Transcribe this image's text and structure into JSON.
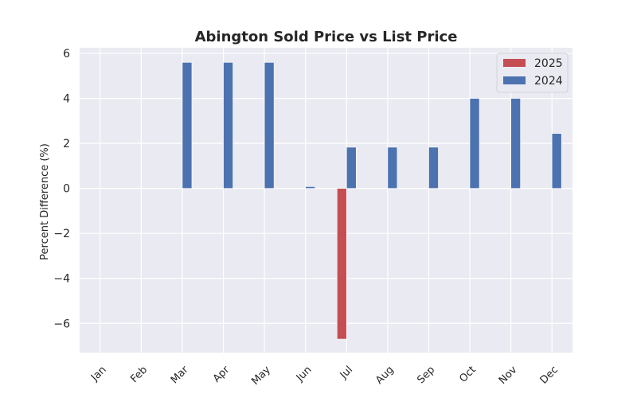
{
  "chart_data": {
    "type": "bar",
    "title": "Abington Sold Price vs List Price",
    "xlabel": "",
    "ylabel": "Percent Difference (%)",
    "categories": [
      "Jan",
      "Feb",
      "Mar",
      "Apr",
      "May",
      "Jun",
      "Jul",
      "Aug",
      "Sep",
      "Oct",
      "Nov",
      "Dec"
    ],
    "series": [
      {
        "name": "2025",
        "color": "#c44e52",
        "values": [
          0,
          0,
          0,
          0,
          0,
          0,
          -6.7,
          null,
          null,
          null,
          null,
          null
        ]
      },
      {
        "name": "2024",
        "color": "#4c72b0",
        "values": [
          0,
          0,
          5.6,
          5.6,
          5.6,
          0.08,
          1.83,
          1.83,
          1.83,
          4.0,
          4.0,
          2.44
        ]
      }
    ],
    "ylim": [
      -7.3,
      6.25
    ],
    "yticks": [
      -6,
      -4,
      -2,
      0,
      2,
      4,
      6
    ],
    "ytick_labels": [
      "−6",
      "−4",
      "−2",
      "0",
      "2",
      "4",
      "6"
    ],
    "grid": true,
    "legend_position": "top-right",
    "background": "#eaeaf2"
  }
}
